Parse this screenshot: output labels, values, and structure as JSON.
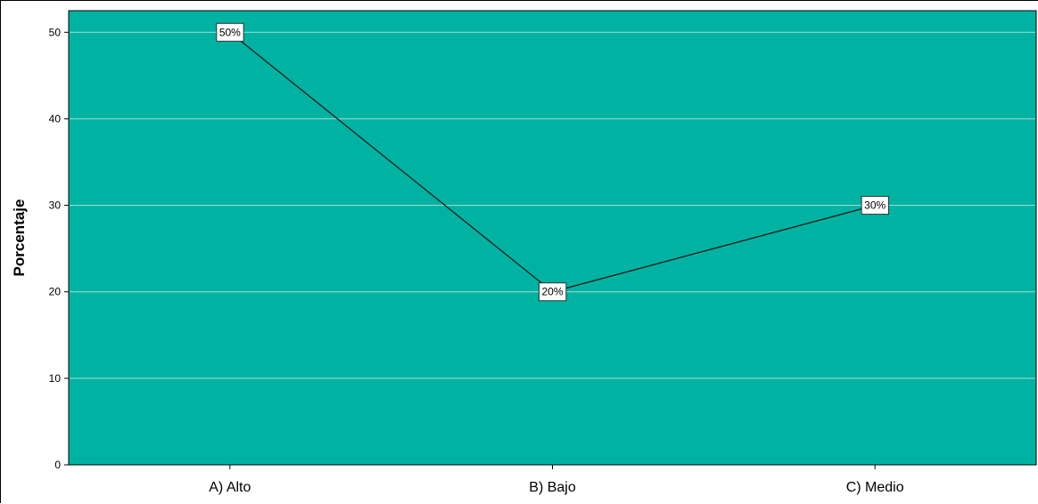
{
  "chart_data": {
    "type": "line",
    "categories": [
      "A) Alto",
      "B) Bajo",
      "C) Medio"
    ],
    "values": [
      50,
      20,
      30
    ],
    "data_labels": [
      "50%",
      "20%",
      "30%"
    ],
    "title": "",
    "xlabel": "",
    "ylabel": "Porcentaje",
    "ylim": [
      0,
      52.5
    ],
    "yticks": [
      0,
      10,
      20,
      30,
      40,
      50
    ],
    "grid": true,
    "legend": "none",
    "colors": {
      "plot_background": "#00b2a2",
      "gridline": "#a8dcd6",
      "line": "#1a1a1a",
      "label_box": "#ffffff"
    }
  }
}
